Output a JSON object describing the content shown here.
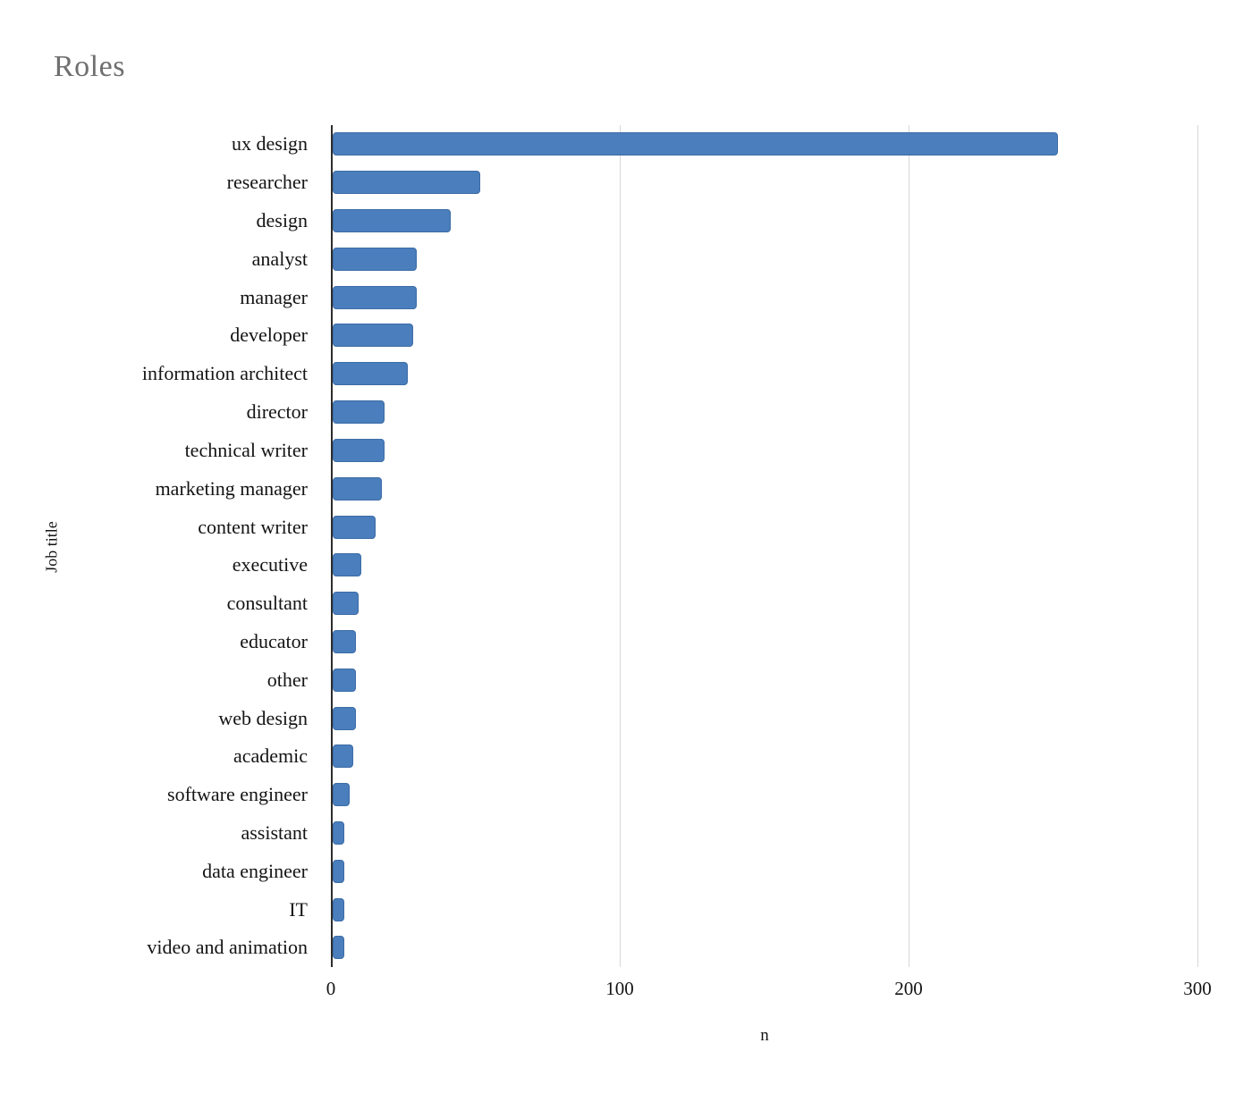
{
  "chart_data": {
    "type": "bar",
    "orientation": "horizontal",
    "title": "Roles",
    "xlabel": "n",
    "ylabel": "Job title",
    "xlim": [
      0,
      300
    ],
    "xticks": [
      0,
      100,
      200,
      300
    ],
    "grid": true,
    "legend": false,
    "bar_color": "#4a7ebc",
    "bar_border_color": "#3c6ca6",
    "axis_line_color": "#2d2d2d",
    "gridline_color": "#d8d8d8",
    "title_color": "#6f6f6f",
    "categories": [
      "ux design",
      "researcher",
      "design",
      "analyst",
      "manager",
      "developer",
      "information architect",
      "director",
      "technical writer",
      "marketing manager",
      "content writer",
      "executive",
      "consultant",
      "educator",
      "other",
      "web design",
      "academic",
      "software engineer",
      "assistant",
      "data engineer",
      "IT",
      "video and animation"
    ],
    "values": [
      251,
      51,
      41,
      29,
      29,
      28,
      26,
      18,
      18,
      17,
      15,
      10,
      9,
      8,
      8,
      8,
      7,
      6,
      4,
      4,
      4,
      4
    ]
  }
}
